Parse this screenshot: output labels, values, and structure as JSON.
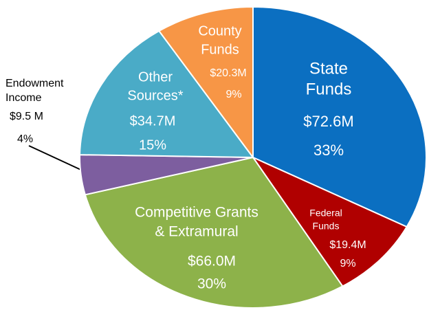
{
  "chart_data": {
    "type": "pie",
    "categories": [
      [
        "State",
        "Funds"
      ],
      [
        "Federal",
        "Funds"
      ],
      [
        "Competitive Grants",
        "& Extramural"
      ],
      [
        "Endowment",
        "Income"
      ],
      [
        "Other",
        "Sources*"
      ],
      [
        "County",
        "Funds"
      ]
    ],
    "values": [
      72.6,
      19.4,
      66.0,
      9.5,
      34.7,
      20.3
    ],
    "value_labels": [
      "$72.6M",
      "$19.4M",
      "$66.0M",
      "$9.5 M",
      "$34.7M",
      "$20.3M"
    ],
    "shares": [
      33,
      9,
      30,
      4,
      15,
      9
    ],
    "share_labels": [
      "33%",
      "9%",
      "30%",
      "4%",
      "15%",
      "9%"
    ],
    "colors": [
      "#0b6fc1",
      "#b00000",
      "#8db24a",
      "#7d5e9f",
      "#4aabc7",
      "#f79646"
    ]
  }
}
